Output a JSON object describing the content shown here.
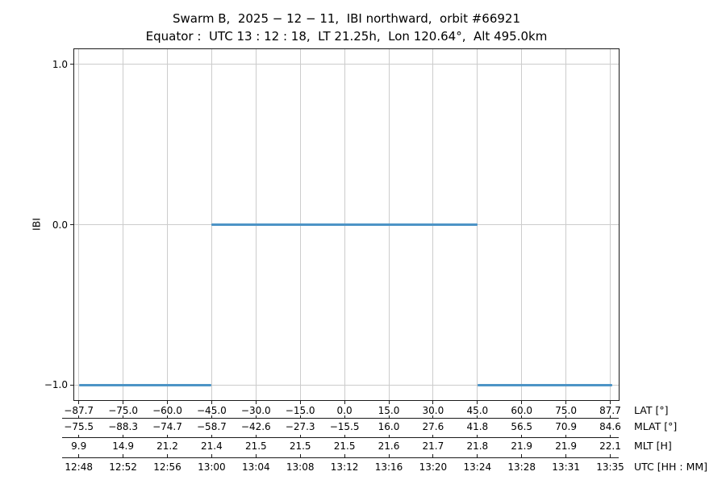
{
  "header": {
    "title": "Swarm B,  2025 − 12 − 11,  IBI northward,  orbit #66921",
    "subtitle": "Equator :  UTC 13 : 12 : 18,  LT 21.25h,  Lon 120.64°,  Alt 495.0km"
  },
  "chart_data": {
    "type": "line",
    "title": "Swarm B, 2025-12-11, IBI northward, orbit #66921",
    "subtitle": "Equator: UTC 13:12:18, LT 21.25h, Lon 120.64°, Alt 495.0km",
    "ylabel": "IBI",
    "ylim": [
      -1.1,
      1.1
    ],
    "ytick_values": [
      1.0,
      0.0,
      -1.0
    ],
    "ytick_labels": [
      "1.0",
      "0.0",
      "−1.0"
    ],
    "grid": true,
    "legend": "none",
    "colors": {
      "line": "#4d94c6",
      "grid": "#cccccc",
      "axis": "#1a1a1a",
      "text": "#000000",
      "background": "#ffffff"
    },
    "segments": [
      {
        "value": -1.0,
        "from_tick": 0,
        "to_tick": 3,
        "utc_from": "12:48",
        "utc_to": "13:00"
      },
      {
        "value": 0.0,
        "from_tick": 3,
        "to_tick": 9,
        "utc_from": "13:00",
        "utc_to": "13:24"
      },
      {
        "value": -1.0,
        "from_tick": 9,
        "to_tick": 12.05,
        "utc_from": "13:24",
        "utc_to": "13:35"
      }
    ],
    "x_axis_rows": [
      {
        "key": "lat",
        "name": "LAT [°]",
        "ticks": [
          "−87.7",
          "−75.0",
          "−60.0",
          "−45.0",
          "−30.0",
          "−15.0",
          "0.0",
          "15.0",
          "30.0",
          "45.0",
          "60.0",
          "75.0",
          "87.7"
        ]
      },
      {
        "key": "mlat",
        "name": "MLAT [°]",
        "ticks": [
          "−75.5",
          "−88.3",
          "−74.7",
          "−58.7",
          "−42.6",
          "−27.3",
          "−15.5",
          "16.0",
          "27.6",
          "41.8",
          "56.5",
          "70.9",
          "84.6"
        ]
      },
      {
        "key": "mlt",
        "name": "MLT [H]",
        "ticks": [
          "9.9",
          "14.9",
          "21.2",
          "21.4",
          "21.5",
          "21.5",
          "21.5",
          "21.6",
          "21.7",
          "21.8",
          "21.9",
          "21.9",
          "22.1"
        ]
      },
      {
        "key": "utc",
        "name": "UTC [HH : MM]",
        "ticks": [
          "12:48",
          "12:52",
          "12:56",
          "13:00",
          "13:04",
          "13:08",
          "13:12",
          "13:16",
          "13:20",
          "13:24",
          "13:28",
          "13:31",
          "13:35"
        ]
      }
    ]
  }
}
